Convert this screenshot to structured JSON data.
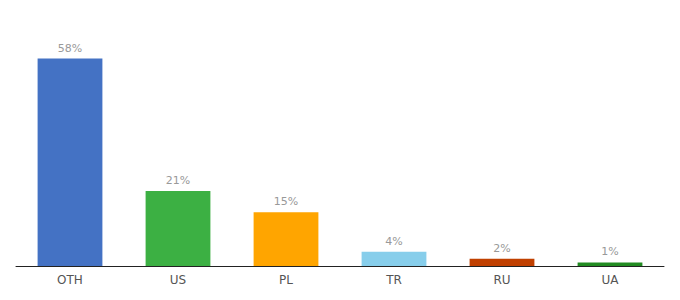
{
  "chart_data": {
    "type": "bar",
    "categories": [
      "OTH",
      "US",
      "PL",
      "TR",
      "RU",
      "UA"
    ],
    "values": [
      58,
      21,
      15,
      4,
      2,
      1
    ],
    "value_labels": [
      "58%",
      "21%",
      "15%",
      "4%",
      "2%",
      "1%"
    ],
    "colors": [
      "#4472C4",
      "#3CB043",
      "#FFA500",
      "#87CEEB",
      "#C04000",
      "#228B22"
    ],
    "ylim": [
      0,
      66
    ],
    "grid": false,
    "legend": false,
    "tick_labels": "x"
  }
}
